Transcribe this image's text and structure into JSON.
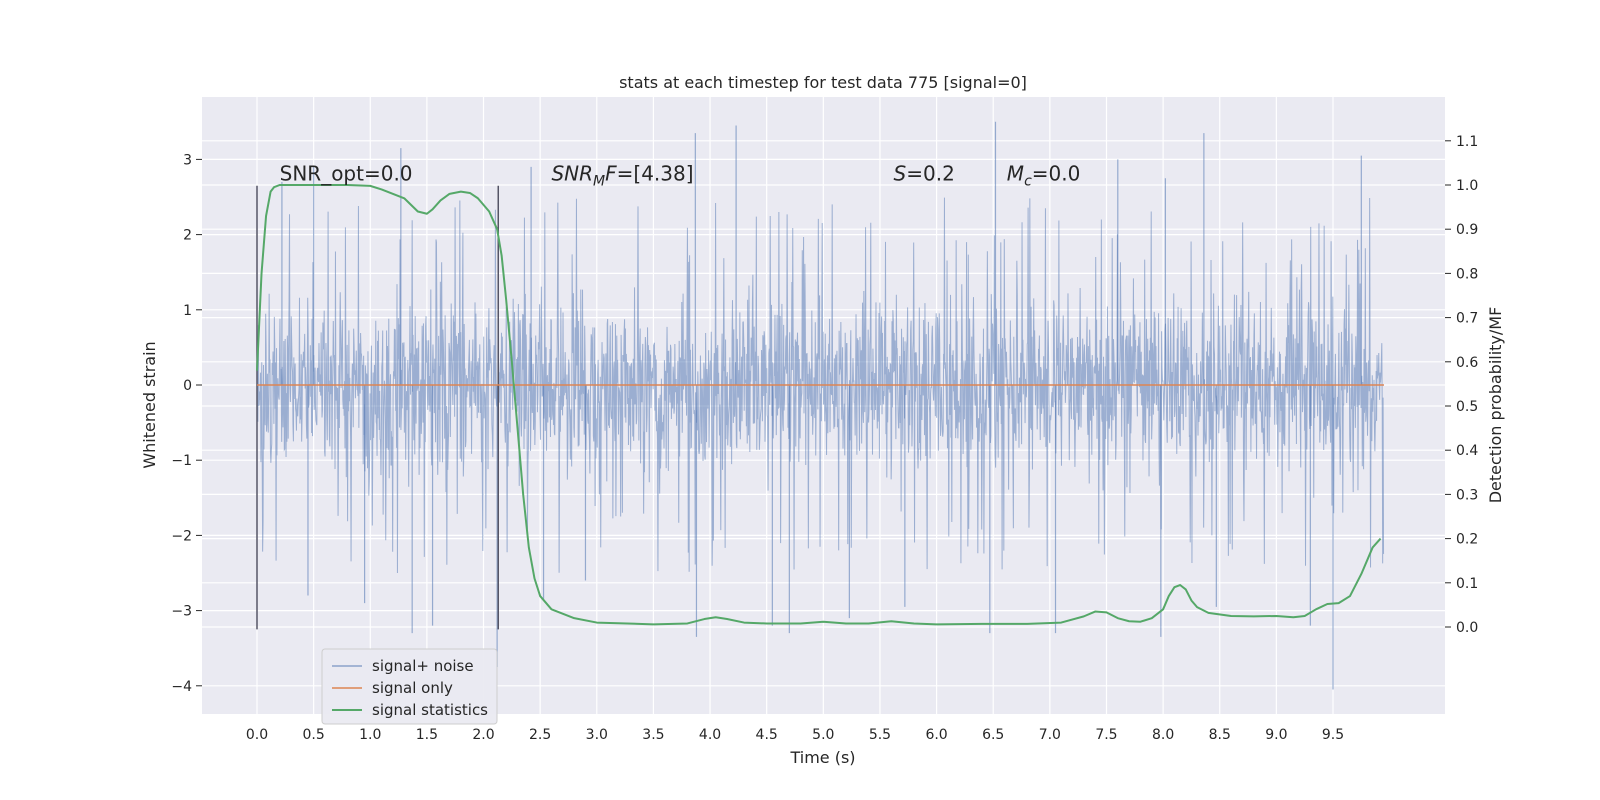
{
  "chart_data": {
    "type": "line",
    "title": "stats at each timestep for test data 775 [signal=0]",
    "xlabel": "Time (s)",
    "ylabel": "Whitened strain",
    "y2label": "Detection probability/MF",
    "xlim": [
      -0.5,
      10.5
    ],
    "ylim": [
      -4.3,
      3.8
    ],
    "y2lim": [
      -0.2,
      1.2
    ],
    "x_ticks": [
      0.0,
      0.5,
      1.0,
      1.5,
      2.0,
      2.5,
      3.0,
      3.5,
      4.0,
      4.5,
      5.0,
      5.5,
      6.0,
      6.5,
      7.0,
      7.5,
      8.0,
      8.5,
      9.0,
      9.5
    ],
    "y_ticks": [
      3,
      2,
      1,
      0,
      -1,
      -2,
      -3,
      -4
    ],
    "y_tick_labels": [
      "3",
      "2",
      "1",
      "0",
      "−1",
      "−2",
      "−3",
      "−4"
    ],
    "y2_ticks": [
      1.1,
      1.0,
      0.9,
      0.8,
      0.7,
      0.6,
      0.5,
      0.4,
      0.3,
      0.2,
      0.1,
      0.0
    ],
    "grid": true,
    "legend_position": "lower-left",
    "vlines": [
      {
        "x": 0.0,
        "ymin": -3.25,
        "ymax": 2.65
      },
      {
        "x": 2.13,
        "ymin": -3.25,
        "ymax": 2.65
      }
    ],
    "annotations": [
      {
        "name": "snr-opt",
        "text": "SNR_opt=0.0",
        "x": 0.2,
        "y": 2.72
      },
      {
        "name": "snr-mf",
        "text": "SNR",
        "sub": "M",
        "after": "F=[4.38]",
        "italic": true,
        "x": 2.6,
        "y": 2.72
      },
      {
        "name": "s-value",
        "text": "S",
        "after": "=0.2",
        "italic": true,
        "x": 5.62,
        "y": 2.72
      },
      {
        "name": "chirp-mass",
        "text": "M",
        "sub": "c",
        "after": "=0.0",
        "italic": true,
        "x": 6.62,
        "y": 2.72
      }
    ],
    "series": [
      {
        "name": "signal+ noise",
        "color": "#4c72b0",
        "kind": "noise",
        "x_range": [
          0.0,
          9.95
        ],
        "typical_range": [
          -1.5,
          1.5
        ],
        "extremes": [
          {
            "x": 0.22,
            "y": 2.7
          },
          {
            "x": 0.45,
            "y": -2.8
          },
          {
            "x": 0.5,
            "y": 2.9
          },
          {
            "x": 0.95,
            "y": -2.9
          },
          {
            "x": 1.27,
            "y": 3.15
          },
          {
            "x": 1.37,
            "y": -3.3
          },
          {
            "x": 1.55,
            "y": -3.2
          },
          {
            "x": 2.12,
            "y": -3.75
          },
          {
            "x": 2.42,
            "y": 2.9
          },
          {
            "x": 2.53,
            "y": -2.85
          },
          {
            "x": 2.9,
            "y": -2.6
          },
          {
            "x": 3.87,
            "y": 3.35
          },
          {
            "x": 3.88,
            "y": -3.35
          },
          {
            "x": 4.23,
            "y": 3.45
          },
          {
            "x": 4.55,
            "y": -3.2
          },
          {
            "x": 4.7,
            "y": -3.3
          },
          {
            "x": 5.23,
            "y": -3.1
          },
          {
            "x": 5.72,
            "y": -2.95
          },
          {
            "x": 6.47,
            "y": -3.3
          },
          {
            "x": 6.52,
            "y": 3.5
          },
          {
            "x": 7.05,
            "y": -3.3
          },
          {
            "x": 7.6,
            "y": 3.0
          },
          {
            "x": 7.98,
            "y": -3.35
          },
          {
            "x": 8.02,
            "y": 2.75
          },
          {
            "x": 8.36,
            "y": 3.35
          },
          {
            "x": 8.47,
            "y": -2.95
          },
          {
            "x": 9.3,
            "y": -3.2
          },
          {
            "x": 9.5,
            "y": -4.05
          },
          {
            "x": 9.75,
            "y": 3.05
          }
        ]
      },
      {
        "name": "signal only",
        "color": "#dd8452",
        "x": [
          0.0,
          9.95
        ],
        "y": [
          0.0,
          0.0
        ]
      },
      {
        "name": "signal statistics",
        "color": "#55a868",
        "axis": "right",
        "x": [
          0.0,
          0.04,
          0.08,
          0.12,
          0.15,
          0.2,
          0.3,
          0.5,
          0.8,
          1.0,
          1.1,
          1.3,
          1.42,
          1.5,
          1.55,
          1.62,
          1.7,
          1.8,
          1.88,
          1.95,
          2.05,
          2.12,
          2.16,
          2.2,
          2.25,
          2.3,
          2.35,
          2.4,
          2.45,
          2.5,
          2.6,
          2.8,
          3.0,
          3.5,
          3.8,
          3.95,
          4.05,
          4.15,
          4.3,
          4.5,
          4.8,
          5.0,
          5.2,
          5.4,
          5.6,
          5.8,
          6.0,
          6.4,
          6.8,
          7.1,
          7.3,
          7.4,
          7.5,
          7.6,
          7.7,
          7.8,
          7.9,
          8.0,
          8.05,
          8.1,
          8.15,
          8.2,
          8.25,
          8.3,
          8.4,
          8.6,
          8.8,
          9.0,
          9.15,
          9.25,
          9.35,
          9.45,
          9.55,
          9.65,
          9.75,
          9.85,
          9.92
        ],
        "y": [
          0.58,
          0.8,
          0.93,
          0.985,
          0.995,
          1.0,
          1.0,
          1.0,
          1.0,
          0.998,
          0.99,
          0.97,
          0.94,
          0.935,
          0.945,
          0.965,
          0.98,
          0.985,
          0.982,
          0.97,
          0.94,
          0.9,
          0.84,
          0.74,
          0.6,
          0.45,
          0.3,
          0.18,
          0.11,
          0.07,
          0.04,
          0.02,
          0.01,
          0.006,
          0.008,
          0.018,
          0.022,
          0.018,
          0.01,
          0.008,
          0.008,
          0.012,
          0.008,
          0.008,
          0.013,
          0.008,
          0.006,
          0.007,
          0.007,
          0.01,
          0.024,
          0.035,
          0.033,
          0.02,
          0.013,
          0.012,
          0.02,
          0.04,
          0.07,
          0.09,
          0.095,
          0.085,
          0.06,
          0.045,
          0.032,
          0.025,
          0.024,
          0.025,
          0.022,
          0.025,
          0.04,
          0.052,
          0.054,
          0.07,
          0.12,
          0.18,
          0.2
        ]
      }
    ]
  }
}
